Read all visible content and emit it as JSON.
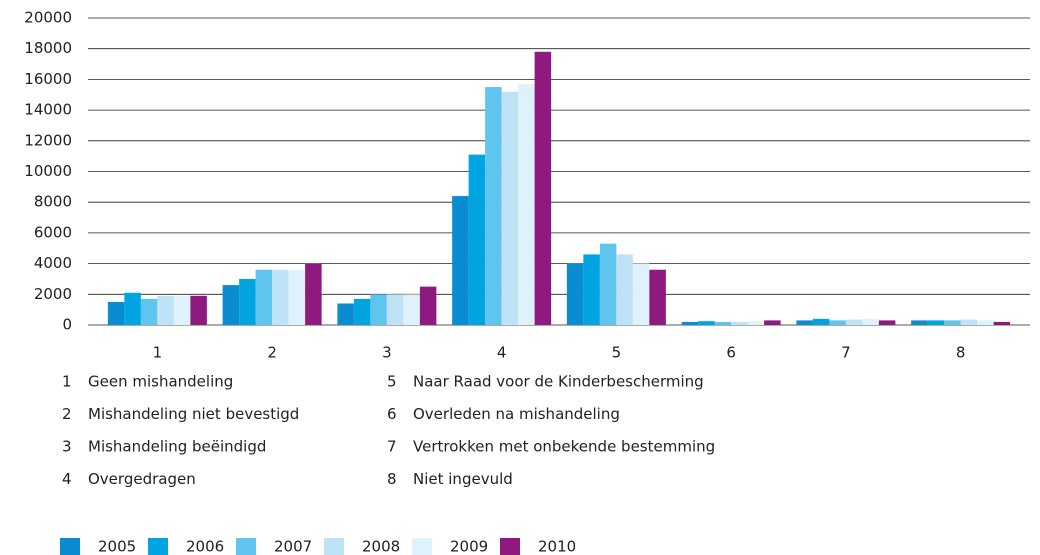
{
  "chart_data": {
    "type": "bar",
    "categories": [
      "1",
      "2",
      "3",
      "4",
      "5",
      "6",
      "7",
      "8"
    ],
    "series": [
      {
        "name": "2005",
        "color": "#0a8cd2",
        "values": [
          1500,
          2600,
          1400,
          8400,
          4000,
          200,
          300,
          300
        ]
      },
      {
        "name": "2006",
        "color": "#00a4e1",
        "values": [
          2100,
          3000,
          1700,
          11100,
          4600,
          250,
          400,
          300
        ]
      },
      {
        "name": "2007",
        "color": "#5fc4ee",
        "values": [
          1700,
          3600,
          2000,
          15500,
          5300,
          200,
          300,
          300
        ]
      },
      {
        "name": "2008",
        "color": "#bee3f7",
        "values": [
          1900,
          3600,
          2000,
          15200,
          4600,
          200,
          350,
          350
        ]
      },
      {
        "name": "2009",
        "color": "#dff1fb",
        "values": [
          1900,
          3600,
          2000,
          15700,
          4000,
          250,
          400,
          300
        ]
      },
      {
        "name": "2010",
        "color": "#8e1a7f",
        "values": [
          1900,
          4000,
          2500,
          17800,
          3600,
          300,
          300,
          200
        ]
      }
    ],
    "ylim": [
      0,
      20000
    ],
    "yticks": [
      0,
      2000,
      4000,
      6000,
      8000,
      10000,
      12000,
      14000,
      16000,
      18000,
      20000
    ],
    "grid": true,
    "key": [
      {
        "number": "1",
        "label": "Geen mishandeling"
      },
      {
        "number": "2",
        "label": "Mishandeling niet bevestigd"
      },
      {
        "number": "3",
        "label": "Mishandeling beëindigd"
      },
      {
        "number": "4",
        "label": "Overgedragen"
      },
      {
        "number": "5",
        "label": "Naar Raad voor de Kinderbescherming"
      },
      {
        "number": "6",
        "label": "Overleden na mishandeling"
      },
      {
        "number": "7",
        "label": "Vertrokken met onbekende bestemming"
      },
      {
        "number": "8",
        "label": "Niet ingevuld"
      }
    ]
  }
}
